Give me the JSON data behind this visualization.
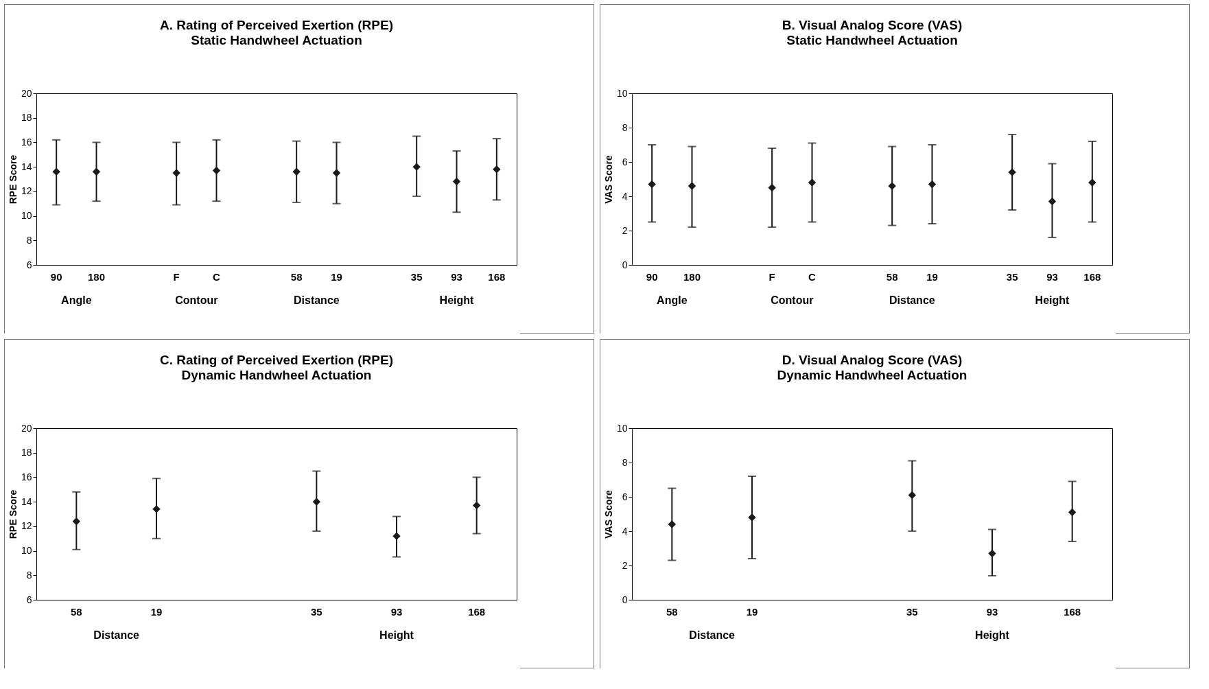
{
  "chart_data": [
    {
      "type": "scatter",
      "title": "A. Rating of Perceived Exertion (RPE)",
      "subtitle": "Static Handwheel Actuation",
      "ylabel": "RPE Score",
      "categories": [
        "90",
        "180",
        null,
        "F",
        "C",
        null,
        "58",
        "19",
        null,
        "35",
        "93",
        "168"
      ],
      "annotations": [
        "Angle",
        "Contour",
        "Distance",
        "Height"
      ],
      "ylim": [
        6,
        20
      ],
      "yticks": [
        6,
        8,
        10,
        12,
        14,
        16,
        18,
        20
      ],
      "marker": "diamond",
      "series": [
        {
          "color": "#1a1a1a",
          "values": [
            13.6,
            13.6,
            null,
            13.5,
            13.7,
            null,
            13.6,
            13.5,
            null,
            14.0,
            12.8,
            13.8
          ],
          "errors": [
            [
              10.9,
              16.2
            ],
            [
              11.2,
              16.0
            ],
            null,
            [
              10.9,
              16.0
            ],
            [
              11.2,
              16.2
            ],
            null,
            [
              11.1,
              16.1
            ],
            [
              11.0,
              16.0
            ],
            null,
            [
              11.6,
              16.5
            ],
            [
              10.3,
              15.3
            ],
            [
              11.3,
              16.3
            ]
          ]
        }
      ]
    },
    {
      "type": "scatter",
      "title": "B. Visual Analog Score (VAS)",
      "subtitle": "Static Handwheel Actuation",
      "ylabel": "VAS Score",
      "categories": [
        "90",
        "180",
        null,
        "F",
        "C",
        null,
        "58",
        "19",
        null,
        "35",
        "93",
        "168"
      ],
      "annotations": [
        "Angle",
        "Contour",
        "Distance",
        "Height"
      ],
      "ylim": [
        0,
        10
      ],
      "yticks": [
        0,
        2,
        4,
        6,
        8,
        10
      ],
      "marker": "diamond",
      "series": [
        {
          "color": "#1a1a1a",
          "values": [
            4.7,
            4.6,
            null,
            4.5,
            4.8,
            null,
            4.6,
            4.7,
            null,
            5.4,
            3.7,
            4.8
          ],
          "errors": [
            [
              2.5,
              7.0
            ],
            [
              2.2,
              6.9
            ],
            null,
            [
              2.2,
              6.8
            ],
            [
              2.5,
              7.1
            ],
            null,
            [
              2.3,
              6.9
            ],
            [
              2.4,
              7.0
            ],
            null,
            [
              3.2,
              7.6
            ],
            [
              1.6,
              5.9
            ],
            [
              2.5,
              7.2
            ]
          ]
        }
      ]
    },
    {
      "type": "scatter",
      "title": "C. Rating of Perceived Exertion (RPE)",
      "subtitle": "Dynamic Handwheel Actuation",
      "ylabel": "RPE Score",
      "categories": [
        "58",
        "19",
        null,
        "35",
        "93",
        "168"
      ],
      "annotations": [
        "Distance",
        "Height"
      ],
      "ylim": [
        6,
        20
      ],
      "yticks": [
        6,
        8,
        10,
        12,
        14,
        16,
        18,
        20
      ],
      "marker": "diamond",
      "series": [
        {
          "color": "#1a1a1a",
          "values": [
            12.4,
            13.4,
            null,
            14.0,
            11.2,
            13.7
          ],
          "errors": [
            [
              10.1,
              14.8
            ],
            [
              11.0,
              15.9
            ],
            null,
            [
              11.6,
              16.5
            ],
            [
              9.5,
              12.8
            ],
            [
              11.4,
              16.0
            ]
          ]
        }
      ]
    },
    {
      "type": "scatter",
      "title": "D. Visual Analog Score (VAS)",
      "subtitle": "Dynamic Handwheel Actuation",
      "ylabel": "VAS Score",
      "categories": [
        "58",
        "19",
        null,
        "35",
        "93",
        "168"
      ],
      "annotations": [
        "Distance",
        "Height"
      ],
      "ylim": [
        0,
        10
      ],
      "yticks": [
        0,
        2,
        4,
        6,
        8,
        10
      ],
      "marker": "diamond",
      "series": [
        {
          "color": "#1a1a1a",
          "values": [
            4.4,
            4.8,
            null,
            6.1,
            2.7,
            5.1
          ],
          "errors": [
            [
              2.3,
              6.5
            ],
            [
              2.4,
              7.2
            ],
            null,
            [
              4.0,
              8.1
            ],
            [
              1.4,
              4.1
            ],
            [
              3.4,
              6.9
            ]
          ]
        }
      ]
    }
  ]
}
